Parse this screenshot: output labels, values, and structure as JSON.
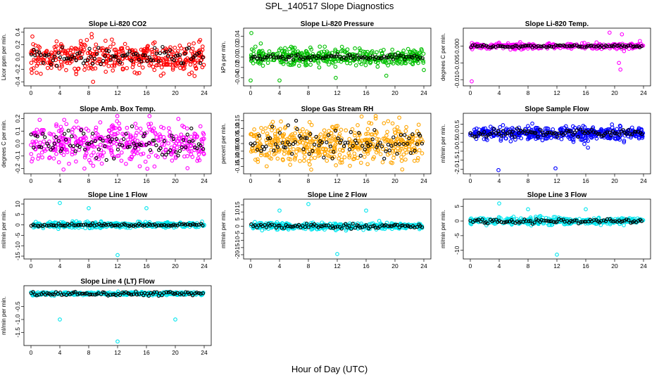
{
  "figure": {
    "title": "SPL_140517  Slope Diagnostics",
    "xlabel": "Hour of Day (UTC)"
  },
  "chart_data": [
    {
      "type": "scatter",
      "title": "Slope Li-820 CO2",
      "ylabel": "Licor ppm per min.",
      "xlim": [
        0,
        24
      ],
      "xticks": [
        0,
        4,
        8,
        12,
        16,
        20,
        24
      ],
      "ylim": [
        -0.42,
        0.42
      ],
      "yticks": [
        -0.4,
        -0.2,
        0.0,
        0.2,
        0.4
      ],
      "ytick_labels": [
        "-0.4",
        "-0.2",
        "0.0",
        "0.2",
        "0.4"
      ],
      "series": [
        {
          "color": "#ff0000",
          "spread": 0.12,
          "n": 420,
          "outliers": [
            [
              8.6,
              -0.4
            ],
            [
              8.4,
              0.37
            ],
            [
              0.2,
              0.33
            ],
            [
              16.6,
              -0.11
            ]
          ]
        },
        {
          "color": "#000000",
          "spread": 0.07,
          "n": 90,
          "outliers": []
        }
      ]
    },
    {
      "type": "scatter",
      "title": "Slope Li-820 Pressure",
      "ylabel": "kPa per min.",
      "xlim": [
        0,
        24
      ],
      "xticks": [
        0,
        4,
        8,
        12,
        16,
        20,
        24
      ],
      "ylim": [
        -0.05,
        0.05
      ],
      "yticks": [
        -0.04,
        -0.02,
        0.0,
        0.02,
        0.04
      ],
      "ytick_labels": [
        "-0.04",
        "-0.02",
        "0.00",
        "0.02",
        "0.04"
      ],
      "series": [
        {
          "color": "#00c000",
          "spread": 0.008,
          "n": 420,
          "outliers": [
            [
              0.1,
              0.046
            ],
            [
              0.0,
              -0.045
            ],
            [
              4.0,
              -0.045
            ],
            [
              11.8,
              -0.04
            ],
            [
              18.8,
              -0.036
            ],
            [
              24.0,
              -0.025
            ],
            [
              1.4,
              0.026
            ],
            [
              9.5,
              -0.02
            ]
          ]
        },
        {
          "color": "#000000",
          "spread": 0.003,
          "n": 90,
          "outliers": []
        }
      ]
    },
    {
      "type": "scatter",
      "title": "Slope Li-820 Temp.",
      "ylabel": "degrees C per min.",
      "xlim": [
        0,
        24
      ],
      "xticks": [
        0,
        4,
        8,
        12,
        16,
        20,
        24
      ],
      "ylim": [
        -0.011,
        0.0045
      ],
      "yticks": [
        -0.01,
        -0.005,
        0.0
      ],
      "ytick_labels": [
        "-0.010",
        "-0.005",
        "0.000"
      ],
      "series": [
        {
          "color": "#ff00ff",
          "spread": 0.0004,
          "n": 320,
          "outliers": [
            [
              0.2,
              -0.0105
            ],
            [
              19.3,
              0.004
            ],
            [
              20.8,
              -0.007
            ],
            [
              20.6,
              -0.005
            ],
            [
              21.3,
              -0.0015
            ],
            [
              23.5,
              0.0015
            ],
            [
              21.0,
              0.0035
            ],
            [
              22.6,
              -0.0005
            ]
          ]
        },
        {
          "color": "#000000",
          "spread": 0.0002,
          "n": 90,
          "outliers": []
        }
      ]
    },
    {
      "type": "scatter",
      "title": "Slope Amb. Box Temp.",
      "ylabel": "degrees C per min.",
      "xlim": [
        0,
        24
      ],
      "xticks": [
        0,
        4,
        8,
        12,
        16,
        20,
        24
      ],
      "ylim": [
        -0.22,
        0.22
      ],
      "yticks": [
        -0.2,
        -0.1,
        0.0,
        0.1,
        0.2
      ],
      "ytick_labels": [
        "-0.2",
        "-0.1",
        "0.0",
        "0.1",
        "0.2"
      ],
      "series": [
        {
          "color": "#ff00ff",
          "spread": 0.08,
          "n": 420,
          "outliers": [
            [
              7.4,
              -0.2
            ],
            [
              1.2,
              0.19
            ],
            [
              4.6,
              0.19
            ],
            [
              9.6,
              0.17
            ]
          ]
        },
        {
          "color": "#000000",
          "spread": 0.06,
          "n": 90,
          "outliers": []
        }
      ]
    },
    {
      "type": "scatter",
      "title": "Slope Gas Stream RH",
      "ylabel": "percent per min.",
      "xlim": [
        0,
        24
      ],
      "xticks": [
        0,
        4,
        8,
        12,
        16,
        20,
        24
      ],
      "ylim": [
        -0.18,
        0.18
      ],
      "yticks": [
        -0.15,
        -0.1,
        -0.05,
        0.0,
        0.05,
        0.1,
        0.15
      ],
      "ytick_labels": [
        "-0.15",
        "-0.10",
        "-0.05",
        "0.00",
        "0.05",
        "0.10",
        "0.15"
      ],
      "series": [
        {
          "color": "#ffa500",
          "spread": 0.065,
          "n": 480,
          "outliers": [
            [
              21.0,
              -0.17
            ],
            [
              20.6,
              0.17
            ],
            [
              1.0,
              -0.12
            ]
          ]
        },
        {
          "color": "#000000",
          "spread": 0.045,
          "n": 90,
          "outliers": [
            [
              6.3,
              0.15
            ],
            [
              5.2,
              0.12
            ]
          ]
        }
      ]
    },
    {
      "type": "scatter",
      "title": "Slope Sample Flow",
      "ylabel": "ml/min per min.",
      "xlim": [
        0,
        24
      ],
      "xticks": [
        0,
        4,
        8,
        12,
        16,
        20,
        24
      ],
      "ylim": [
        -2.1,
        0.95
      ],
      "yticks": [
        -2.0,
        -1.5,
        -1.0,
        -0.5,
        0.0,
        0.5
      ],
      "ytick_labels": [
        "-2.0",
        "-1.5",
        "-1.0",
        "-0.5",
        "0.0",
        "0.5"
      ],
      "series": [
        {
          "color": "#0000ff",
          "spread": 0.18,
          "n": 420,
          "outliers": [
            [
              3.9,
              -2.05
            ],
            [
              11.8,
              -1.95
            ],
            [
              15.8,
              -0.6
            ],
            [
              16.0,
              -0.4
            ],
            [
              16.3,
              -0.8
            ],
            [
              21.3,
              -0.5
            ],
            [
              5.6,
              -0.45
            ],
            [
              2.2,
              -0.3
            ],
            [
              0.0,
              -0.1
            ]
          ]
        },
        {
          "color": "#000000",
          "spread": 0.12,
          "n": 90,
          "outliers": []
        }
      ]
    },
    {
      "type": "scatter",
      "title": "Slope Line 1 Flow",
      "ylabel": "ml/min per min.",
      "xlim": [
        0,
        24
      ],
      "xticks": [
        0,
        4,
        8,
        12,
        16,
        20,
        24
      ],
      "ylim": [
        -15,
        11
      ],
      "yticks": [
        -15,
        -10,
        -5,
        0,
        5,
        10
      ],
      "ytick_labels": [
        "-15",
        "-10",
        "-5",
        "0",
        "5",
        "10"
      ],
      "series": [
        {
          "color": "#00e5ee",
          "spread": 0.7,
          "n": 380,
          "outliers": [
            [
              4.0,
              10.5
            ],
            [
              8.0,
              8.0
            ],
            [
              16.0,
              8.0
            ],
            [
              12.0,
              -14.5
            ]
          ]
        },
        {
          "color": "#000000",
          "spread": 0.3,
          "n": 90,
          "outliers": []
        }
      ]
    },
    {
      "type": "scatter",
      "title": "Slope Line 2 Flow",
      "ylabel": "ml/min per min.",
      "xlim": [
        0,
        24
      ],
      "xticks": [
        0,
        4,
        8,
        12,
        16,
        20,
        24
      ],
      "ylim": [
        -21,
        17
      ],
      "yticks": [
        -20,
        -15,
        -10,
        -5,
        0,
        5,
        10,
        15
      ],
      "ytick_labels": [
        "-20",
        "-15",
        "-10",
        "-5",
        "0",
        "5",
        "10",
        "15"
      ],
      "series": [
        {
          "color": "#00e5ee",
          "spread": 1.2,
          "n": 380,
          "outliers": [
            [
              4.0,
              11.0
            ],
            [
              8.0,
              15.5
            ],
            [
              16.0,
              11.0
            ],
            [
              12.0,
              -19.5
            ]
          ]
        },
        {
          "color": "#000000",
          "spread": 0.9,
          "n": 90,
          "outliers": []
        }
      ]
    },
    {
      "type": "scatter",
      "title": "Slope Line 3 Flow",
      "ylabel": "ml/min per min.",
      "xlim": [
        0,
        24
      ],
      "xticks": [
        0,
        4,
        8,
        12,
        16,
        20,
        24
      ],
      "ylim": [
        -12,
        6.5
      ],
      "yticks": [
        -10,
        -5,
        0,
        5
      ],
      "ytick_labels": [
        "-10",
        "-5",
        "0",
        "5"
      ],
      "series": [
        {
          "color": "#00e5ee",
          "spread": 0.6,
          "n": 380,
          "outliers": [
            [
              4.0,
              6.0
            ],
            [
              8.0,
              4.0
            ],
            [
              16.0,
              4.0
            ],
            [
              12.0,
              -11.5
            ]
          ]
        },
        {
          "color": "#000000",
          "spread": 0.4,
          "n": 90,
          "outliers": []
        }
      ]
    },
    {
      "type": "scatter",
      "title": "Slope Line 4 (LT) Flow",
      "ylabel": "ml/min per min.",
      "xlim": [
        0,
        24
      ],
      "xticks": [
        0,
        4,
        8,
        12,
        16,
        20,
        24
      ],
      "ylim": [
        -1.9,
        0.2
      ],
      "yticks": [
        -1.5,
        -1.0,
        -0.5
      ],
      "ytick_labels": [
        "-1.5",
        "-1.0",
        "-0.5"
      ],
      "series": [
        {
          "color": "#00e5ee",
          "spread": 0.03,
          "n": 380,
          "outliers": [
            [
              4.0,
              -1.0
            ],
            [
              20.0,
              -1.0
            ],
            [
              12.0,
              -1.85
            ]
          ]
        },
        {
          "color": "#000000",
          "spread": 0.04,
          "n": 90,
          "outliers": []
        }
      ]
    }
  ]
}
